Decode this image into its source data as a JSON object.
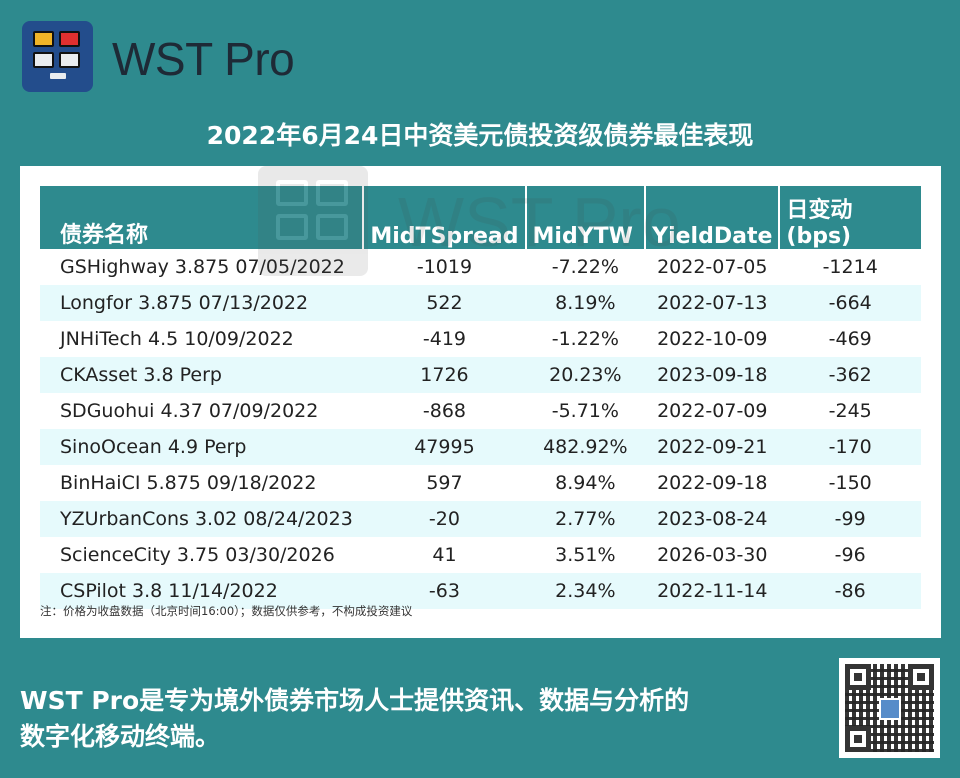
{
  "brand": {
    "name": "WST Pro"
  },
  "title": "2022年6月24日中资美元债投资级债券最佳表现",
  "table": {
    "headers": [
      "债券名称",
      "MidTSpread",
      "MidYTW",
      "YieldDate",
      "日变动(bps)"
    ],
    "rows": [
      [
        "GSHighway 3.875 07/05/2022",
        "-1019",
        "-7.22%",
        "2022-07-05",
        "-1214"
      ],
      [
        "Longfor 3.875 07/13/2022",
        "522",
        "8.19%",
        "2022-07-13",
        "-664"
      ],
      [
        "JNHiTech 4.5 10/09/2022",
        "-419",
        "-1.22%",
        "2022-10-09",
        "-469"
      ],
      [
        "CKAsset 3.8 Perp",
        "1726",
        "20.23%",
        "2023-09-18",
        "-362"
      ],
      [
        "SDGuohui 4.37 07/09/2022",
        "-868",
        "-5.71%",
        "2022-07-09",
        "-245"
      ],
      [
        "SinoOcean 4.9 Perp",
        "47995",
        "482.92%",
        "2022-09-21",
        "-170"
      ],
      [
        "BinHaiCI 5.875 09/18/2022",
        "597",
        "8.94%",
        "2022-09-18",
        "-150"
      ],
      [
        "YZUrbanCons 3.02 08/24/2023",
        "-20",
        "2.77%",
        "2023-08-24",
        "-99"
      ],
      [
        "ScienceCity 3.75 03/30/2026",
        "41",
        "3.51%",
        "2026-03-30",
        "-96"
      ],
      [
        "CSPilot 3.8 11/14/2022",
        "-63",
        "2.34%",
        "2022-11-14",
        "-86"
      ]
    ]
  },
  "note": "注：价格为收盘数据（北京时间16:00）；数据仅供参考，不构成投资建议",
  "footer": {
    "line1": "WST Pro是专为境外债券市场人士提供资讯、数据与分析的",
    "line2": "数字化移动终端。"
  },
  "watermark": "WST Pro",
  "colors": {
    "background": "#2e8a8e",
    "header": "#2e8a8e",
    "row_alt": "#e6fafc",
    "logo": "#234d8c"
  },
  "icons": [
    "wst-logo-icon",
    "qr-code-icon"
  ]
}
